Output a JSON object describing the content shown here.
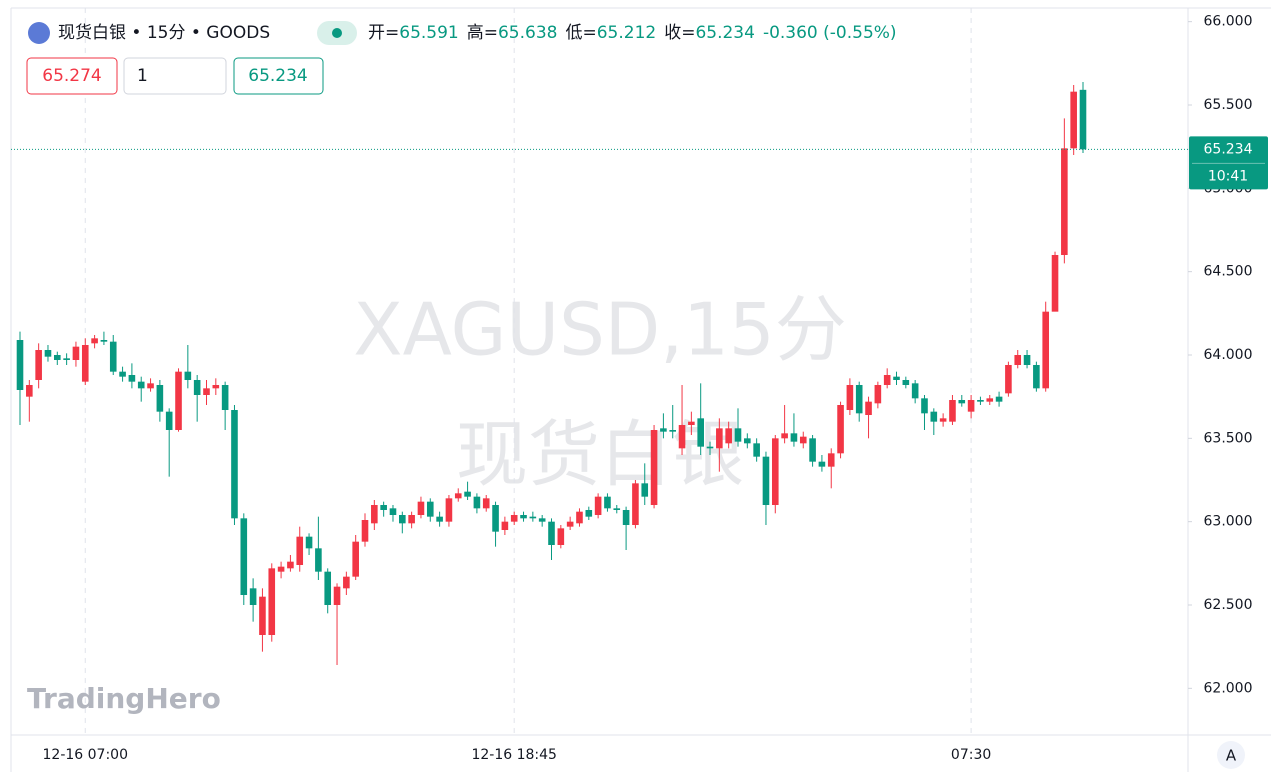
{
  "chart_data": {
    "type": "candlestick",
    "title": "现货白银 • 15分 • GOODS",
    "ohlc_header": [
      {
        "label": "开=",
        "value": "65.591"
      },
      {
        "label": "高=",
        "value": "65.638"
      },
      {
        "label": "低=",
        "value": "65.212"
      },
      {
        "label": "收=",
        "value": "65.234"
      }
    ],
    "change": "-0.360 (-0.55%)",
    "sell_price": "65.274",
    "quantity": "1",
    "buy_price": "65.234",
    "watermark": [
      "XAGUSD,15分",
      "现货白银"
    ],
    "logo": "TradingHero",
    "last_price": {
      "value": 65.234,
      "label": "65.234"
    },
    "countdown": "10:41",
    "auto_scale_button": "A",
    "up_color": "#f23645",
    "down_color": "#089981",
    "ylim": [
      61.72,
      66.07
    ],
    "yticks": [
      {
        "value": 62,
        "label": "62.000"
      },
      {
        "value": 62.5,
        "label": "62.500"
      },
      {
        "value": 63,
        "label": "63.000"
      },
      {
        "value": 63.5,
        "label": "63.500"
      },
      {
        "value": 64,
        "label": "64.000"
      },
      {
        "value": 64.5,
        "label": "64.500"
      },
      {
        "value": 65,
        "label": "65.000"
      },
      {
        "value": 65.5,
        "label": "65.500"
      },
      {
        "value": 66,
        "label": "66.000"
      }
    ],
    "categories": [
      null,
      null,
      null,
      null,
      null,
      null,
      null,
      "12-16 07:00",
      null,
      null,
      null,
      null,
      null,
      null,
      null,
      null,
      null,
      null,
      null,
      null,
      null,
      null,
      null,
      null,
      null,
      null,
      null,
      null,
      null,
      null,
      null,
      null,
      null,
      null,
      null,
      null,
      null,
      null,
      null,
      null,
      null,
      null,
      null,
      null,
      null,
      null,
      null,
      null,
      null,
      null,
      null,
      null,
      null,
      "12-16 18:45",
      null,
      null,
      null,
      null,
      null,
      null,
      null,
      null,
      null,
      null,
      null,
      null,
      null,
      null,
      null,
      null,
      null,
      null,
      null,
      null,
      null,
      null,
      null,
      null,
      null,
      null,
      null,
      null,
      null,
      null,
      null,
      null,
      null,
      null,
      null,
      null,
      null,
      null,
      null,
      null,
      null,
      null,
      null,
      null,
      null,
      null,
      null,
      null,
      "07:30",
      null,
      null,
      null,
      null,
      null,
      null,
      null,
      null,
      null,
      null,
      null,
      null
    ],
    "candles": {
      "open": [
        64.09,
        63.75,
        63.85,
        64.03,
        64.0,
        63.98,
        63.97,
        63.84,
        64.07,
        64.09,
        64.08,
        63.9,
        63.88,
        63.84,
        63.8,
        63.82,
        63.66,
        63.55,
        63.9,
        63.85,
        63.76,
        63.8,
        63.82,
        63.67,
        63.02,
        62.6,
        62.32,
        62.32,
        62.7,
        62.72,
        62.74,
        62.91,
        62.84,
        62.7,
        62.5,
        62.6,
        62.67,
        62.88,
        62.99,
        63.1,
        63.08,
        63.04,
        62.99,
        63.04,
        63.12,
        63.03,
        63.0,
        63.14,
        63.18,
        63.15,
        63.08,
        63.1,
        62.95,
        63.0,
        63.04,
        63.03,
        63.02,
        63.0,
        62.86,
        62.97,
        62.99,
        63.07,
        63.04,
        63.15,
        63.08,
        63.07,
        62.98,
        63.23,
        63.1,
        63.56,
        63.55,
        63.44,
        63.58,
        63.62,
        63.45,
        63.44,
        63.47,
        63.56,
        63.5,
        63.47,
        63.39,
        63.1,
        63.5,
        63.53,
        63.47,
        63.5,
        63.36,
        63.33,
        63.41,
        63.67,
        63.82,
        63.64,
        63.71,
        63.82,
        63.87,
        63.85,
        63.83,
        63.74,
        63.66,
        63.6,
        63.6,
        63.73,
        63.66,
        63.73,
        63.72,
        63.75,
        63.77,
        63.94,
        64.0,
        63.94,
        63.8,
        64.26,
        64.6,
        65.24,
        65.591
      ],
      "high": [
        64.14,
        63.85,
        64.07,
        64.06,
        64.02,
        64.01,
        64.08,
        64.1,
        64.12,
        64.14,
        64.12,
        63.93,
        63.95,
        63.87,
        63.86,
        63.85,
        63.68,
        63.92,
        64.06,
        63.88,
        63.85,
        63.86,
        63.84,
        63.7,
        63.05,
        62.66,
        62.6,
        62.75,
        62.76,
        62.8,
        62.97,
        62.93,
        63.03,
        62.72,
        62.63,
        62.7,
        62.92,
        63.05,
        63.13,
        63.12,
        63.1,
        63.06,
        63.06,
        63.15,
        63.14,
        63.06,
        63.16,
        63.2,
        63.24,
        63.17,
        63.16,
        63.12,
        63.03,
        63.06,
        63.06,
        63.06,
        63.04,
        63.02,
        62.98,
        63.03,
        63.08,
        63.09,
        63.17,
        63.17,
        63.1,
        63.09,
        63.25,
        63.35,
        63.58,
        63.65,
        63.7,
        63.82,
        63.66,
        63.83,
        63.48,
        63.62,
        63.6,
        63.68,
        63.53,
        63.5,
        63.42,
        63.52,
        63.7,
        63.65,
        63.54,
        63.52,
        63.4,
        63.44,
        63.72,
        63.86,
        63.84,
        63.75,
        63.84,
        63.92,
        63.9,
        63.87,
        63.85,
        63.76,
        63.68,
        63.65,
        63.76,
        63.76,
        63.76,
        63.75,
        63.76,
        63.78,
        63.96,
        64.03,
        64.03,
        63.96,
        64.32,
        64.62,
        65.42,
        65.62,
        65.638
      ],
      "low": [
        63.58,
        63.6,
        63.8,
        63.96,
        63.94,
        63.94,
        63.93,
        63.82,
        64.04,
        64.06,
        63.88,
        63.84,
        63.8,
        63.72,
        63.78,
        63.6,
        63.27,
        63.54,
        63.8,
        63.6,
        63.7,
        63.76,
        63.55,
        62.98,
        62.5,
        62.4,
        62.22,
        62.28,
        62.66,
        62.7,
        62.7,
        62.8,
        62.65,
        62.45,
        62.14,
        62.56,
        62.65,
        62.85,
        62.95,
        63.03,
        63.0,
        62.93,
        62.96,
        63.02,
        63.0,
        62.97,
        62.97,
        63.12,
        63.13,
        63.05,
        63.06,
        62.85,
        62.92,
        62.98,
        63.0,
        63.0,
        62.97,
        62.77,
        62.84,
        62.95,
        62.97,
        63.01,
        63.02,
        63.06,
        63.05,
        62.83,
        62.96,
        63.1,
        63.08,
        63.5,
        63.5,
        63.4,
        63.52,
        63.4,
        63.4,
        63.3,
        63.44,
        63.45,
        63.44,
        63.36,
        62.98,
        63.05,
        63.47,
        63.45,
        63.44,
        63.33,
        63.3,
        63.2,
        63.38,
        63.64,
        63.6,
        63.5,
        63.68,
        63.8,
        63.82,
        63.8,
        63.71,
        63.55,
        63.52,
        63.57,
        63.58,
        63.69,
        63.62,
        63.7,
        63.7,
        63.69,
        63.75,
        63.92,
        63.92,
        63.78,
        63.78,
        64.53,
        64.55,
        65.2,
        65.212
      ],
      "close": [
        63.79,
        63.82,
        64.03,
        63.99,
        63.97,
        63.97,
        64.05,
        64.06,
        64.1,
        64.08,
        63.9,
        63.87,
        63.84,
        63.8,
        63.83,
        63.66,
        63.55,
        63.9,
        63.85,
        63.76,
        63.8,
        63.82,
        63.67,
        63.02,
        62.56,
        62.5,
        62.55,
        62.72,
        62.73,
        62.76,
        62.91,
        62.84,
        62.7,
        62.5,
        62.61,
        62.67,
        62.88,
        63.01,
        63.1,
        63.07,
        63.04,
        62.99,
        63.04,
        63.12,
        63.03,
        63.0,
        63.14,
        63.17,
        63.15,
        63.08,
        63.14,
        62.94,
        63.0,
        63.04,
        63.02,
        63.02,
        63.0,
        62.86,
        62.96,
        63.0,
        63.06,
        63.03,
        63.15,
        63.08,
        63.07,
        62.98,
        63.23,
        63.15,
        63.55,
        63.54,
        63.54,
        63.58,
        63.6,
        63.45,
        63.44,
        63.56,
        63.56,
        63.48,
        63.47,
        63.39,
        63.1,
        63.5,
        63.53,
        63.48,
        63.51,
        63.36,
        63.33,
        63.41,
        63.7,
        63.82,
        63.65,
        63.72,
        63.82,
        63.88,
        63.85,
        63.82,
        63.74,
        63.65,
        63.6,
        63.62,
        63.73,
        63.71,
        63.73,
        63.72,
        63.74,
        63.72,
        63.94,
        64.0,
        63.94,
        63.8,
        64.26,
        64.6,
        65.24,
        65.58,
        65.234
      ]
    }
  }
}
